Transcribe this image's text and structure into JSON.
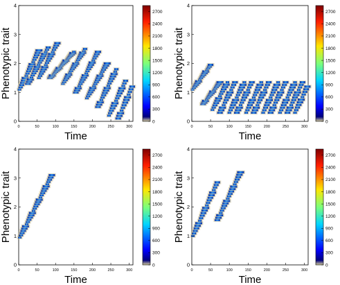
{
  "chart_data": [
    {
      "type": "heatmap",
      "xlabel": "Time",
      "ylabel": "Phenotypic trait",
      "xlim": [
        0,
        310
      ],
      "ylim": [
        0,
        4
      ],
      "x_ticks": [
        "0",
        "50",
        "100",
        "150",
        "200",
        "250",
        "300"
      ],
      "y_ticks": [
        "0",
        "1",
        "2",
        "3",
        "4"
      ],
      "colorbar_ticks": [
        "0",
        "300",
        "600",
        "900",
        "1200",
        "1500",
        "1800",
        "2100",
        "2400",
        "2700"
      ],
      "colorbar_range": [
        0,
        2850
      ],
      "grid": false,
      "clusters": [
        {
          "t_start": 2,
          "t_end": 55,
          "trait_start": 1.1,
          "trait_end": 2.45
        },
        {
          "t_start": 25,
          "t_end": 80,
          "trait_start": 1.3,
          "trait_end": 2.55
        },
        {
          "t_start": 55,
          "t_end": 105,
          "trait_start": 1.5,
          "trait_end": 2.7
        },
        {
          "t_start": 85,
          "t_end": 150,
          "trait_start": 1.5,
          "trait_end": 2.4
        },
        {
          "t_start": 120,
          "t_end": 180,
          "trait_start": 1.3,
          "trait_end": 2.5
        },
        {
          "t_start": 155,
          "t_end": 215,
          "trait_start": 1.0,
          "trait_end": 2.4
        },
        {
          "t_start": 185,
          "t_end": 240,
          "trait_start": 0.8,
          "trait_end": 2.0
        },
        {
          "t_start": 215,
          "t_end": 265,
          "trait_start": 0.5,
          "trait_end": 1.8
        },
        {
          "t_start": 245,
          "t_end": 290,
          "trait_start": 0.2,
          "trait_end": 1.4
        },
        {
          "t_start": 270,
          "t_end": 308,
          "trait_start": 0.1,
          "trait_end": 1.2
        }
      ]
    },
    {
      "type": "heatmap",
      "xlabel": "Time",
      "ylabel": "Phenotypic trait",
      "xlim": [
        0,
        310
      ],
      "ylim": [
        0,
        4
      ],
      "x_ticks": [
        "0",
        "50",
        "100",
        "150",
        "200",
        "250",
        "300"
      ],
      "y_ticks": [
        "0",
        "1",
        "2",
        "3",
        "4"
      ],
      "colorbar_ticks": [
        "0",
        "300",
        "600",
        "900",
        "1200",
        "1500",
        "1800",
        "2100",
        "2400",
        "2700"
      ],
      "colorbar_range": [
        0,
        2850
      ],
      "grid": false,
      "clusters": [
        {
          "t_start": 2,
          "t_end": 50,
          "trait_start": 1.1,
          "trait_end": 1.95
        },
        {
          "t_start": 30,
          "t_end": 75,
          "trait_start": 0.6,
          "trait_end": 1.35
        },
        {
          "t_start": 55,
          "t_end": 95,
          "trait_start": 0.4,
          "trait_end": 1.35
        },
        {
          "t_start": 75,
          "t_end": 115,
          "trait_start": 0.3,
          "trait_end": 1.35
        },
        {
          "t_start": 100,
          "t_end": 140,
          "trait_start": 0.3,
          "trait_end": 1.35
        },
        {
          "t_start": 120,
          "t_end": 160,
          "trait_start": 0.3,
          "trait_end": 1.35
        },
        {
          "t_start": 145,
          "t_end": 185,
          "trait_start": 0.3,
          "trait_end": 1.35
        },
        {
          "t_start": 165,
          "t_end": 205,
          "trait_start": 0.3,
          "trait_end": 1.35
        },
        {
          "t_start": 190,
          "t_end": 230,
          "trait_start": 0.3,
          "trait_end": 1.35
        },
        {
          "t_start": 210,
          "t_end": 250,
          "trait_start": 0.3,
          "trait_end": 1.35
        },
        {
          "t_start": 235,
          "t_end": 275,
          "trait_start": 0.3,
          "trait_end": 1.35
        },
        {
          "t_start": 255,
          "t_end": 295,
          "trait_start": 0.3,
          "trait_end": 1.35
        },
        {
          "t_start": 275,
          "t_end": 308,
          "trait_start": 0.3,
          "trait_end": 1.2
        }
      ]
    },
    {
      "type": "heatmap",
      "xlabel": "Time",
      "ylabel": "Phenotypic trait",
      "xlim": [
        0,
        310
      ],
      "ylim": [
        0,
        4
      ],
      "x_ticks": [
        "0",
        "50",
        "100",
        "150",
        "200",
        "250",
        "300"
      ],
      "y_ticks": [
        "0",
        "1",
        "2",
        "3",
        "4"
      ],
      "colorbar_ticks": [
        "0",
        "300",
        "600",
        "900",
        "1200",
        "1500",
        "1800",
        "2100",
        "2400",
        "2700"
      ],
      "colorbar_range": [
        0,
        2850
      ],
      "grid": false,
      "clusters": [
        {
          "t_start": 3,
          "t_end": 90,
          "trait_start": 0.95,
          "trait_end": 3.1
        }
      ]
    },
    {
      "type": "heatmap",
      "xlabel": "Time",
      "ylabel": "Phenotypic trait",
      "xlim": [
        0,
        310
      ],
      "ylim": [
        0,
        4
      ],
      "x_ticks": [
        "0",
        "50",
        "100",
        "150",
        "200",
        "250",
        "300"
      ],
      "y_ticks": [
        "0",
        "1",
        "2",
        "3",
        "4"
      ],
      "colorbar_ticks": [
        "0",
        "300",
        "600",
        "900",
        "1200",
        "1500",
        "1800",
        "2100",
        "2400",
        "2700"
      ],
      "colorbar_range": [
        0,
        2850
      ],
      "grid": false,
      "clusters": [
        {
          "t_start": 3,
          "t_end": 68,
          "trait_start": 1.0,
          "trait_end": 2.85
        },
        {
          "t_start": 68,
          "t_end": 130,
          "trait_start": 1.55,
          "trait_end": 3.2
        }
      ]
    }
  ]
}
